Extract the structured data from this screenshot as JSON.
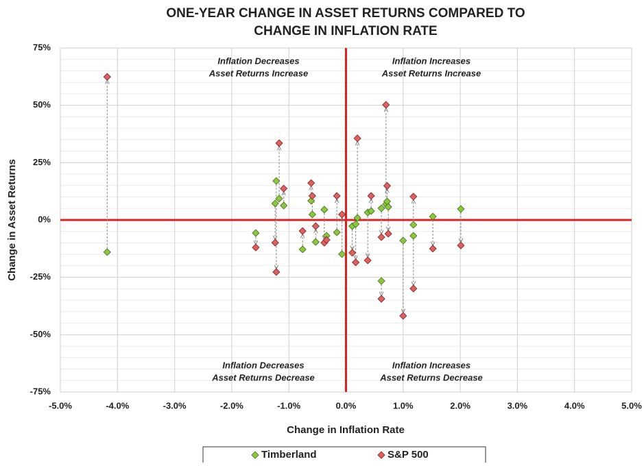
{
  "chart_data": {
    "type": "scatter",
    "title": [
      "ONE-YEAR CHANGE IN ASSET RETURNS COMPARED TO",
      "CHANGE IN INFLATION RATE"
    ],
    "x_label": "Change in Inflation Rate",
    "y_label": "Change in Asset Returns",
    "x": [
      -4.18,
      -1.58,
      -1.24,
      -1.22,
      -1.17,
      -1.09,
      -0.76,
      -0.61,
      -0.59,
      -0.53,
      -0.38,
      -0.34,
      -0.16,
      -0.07,
      0.11,
      0.17,
      0.2,
      0.38,
      0.44,
      0.62,
      0.62,
      0.7,
      0.72,
      0.74,
      1.0,
      1.18,
      1.18,
      1.52,
      2.01
    ],
    "series": [
      {
        "name": "Timberland",
        "color": "#8dc63f",
        "stroke": "#3f6b1a",
        "values": [
          -14.0,
          -5.7,
          7.2,
          17.0,
          9.3,
          6.3,
          -12.8,
          8.4,
          2.4,
          -9.6,
          4.5,
          -6.9,
          -5.4,
          -14.9,
          -2.7,
          -1.8,
          0.9,
          3.3,
          3.9,
          5.1,
          -26.6,
          6.9,
          8.1,
          5.7,
          -9.0,
          -2.1,
          -6.9,
          1.5,
          4.8
        ]
      },
      {
        "name": "S&P 500",
        "color": "#e06060",
        "stroke": "#7a1c1c",
        "values": [
          62.4,
          -12.0,
          -9.9,
          -22.7,
          33.5,
          13.7,
          -4.8,
          16.1,
          10.5,
          -2.7,
          -9.9,
          -8.7,
          10.5,
          2.4,
          -14.3,
          -18.5,
          35.6,
          -17.6,
          10.5,
          -7.5,
          -34.4,
          50.2,
          14.9,
          -6.0,
          -41.8,
          10.2,
          -29.9,
          -12.5,
          -11.1
        ]
      }
    ],
    "annotations": [
      [
        "Inflation Decreases",
        "Asset Returns Increase"
      ],
      [
        "Inflation Increases",
        "Asset Returns Increase"
      ],
      [
        "Inflation Decreases",
        "Asset Returns Decrease"
      ],
      [
        "Inflation Increases",
        "Asset Returns Decrease"
      ]
    ],
    "xlim": [
      -5,
      5
    ],
    "xticks": [
      {
        "value": -5,
        "label": "-5.0%"
      },
      {
        "value": -4,
        "label": "-4.0%"
      },
      {
        "value": -3,
        "label": "-3.0%"
      },
      {
        "value": -2,
        "label": "-2.0%"
      },
      {
        "value": -1,
        "label": "-1.0%"
      },
      {
        "value": 0,
        "label": "0.0%"
      },
      {
        "value": 1,
        "label": "1.0%"
      },
      {
        "value": 2,
        "label": "2.0%"
      },
      {
        "value": 3,
        "label": "3.0%"
      },
      {
        "value": 4,
        "label": "4.0%"
      },
      {
        "value": 5,
        "label": "5.0%"
      }
    ],
    "ylim": [
      -75,
      75
    ],
    "yticks": [
      {
        "value": -75,
        "label": "-75%"
      },
      {
        "value": -50,
        "label": "-50%"
      },
      {
        "value": -25,
        "label": "-25%"
      },
      {
        "value": 0,
        "label": "0%"
      },
      {
        "value": 25,
        "label": "25%"
      },
      {
        "value": 50,
        "label": "50%"
      },
      {
        "value": 75,
        "label": "75%"
      }
    ],
    "grid": true,
    "minor_grid": true,
    "axis_color": "#e02020",
    "legend": "bottom"
  }
}
